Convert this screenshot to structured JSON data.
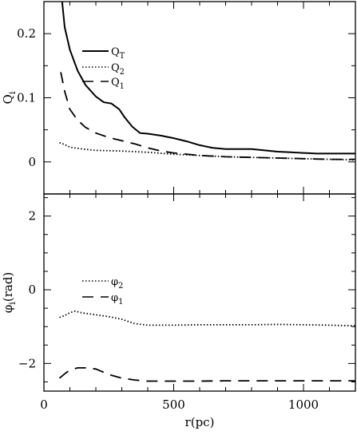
{
  "chart_data": [
    {
      "type": "line",
      "panel": "top",
      "ylabel": "Q_i",
      "xlim": [
        0,
        1200
      ],
      "ylim": [
        -0.05,
        0.25
      ],
      "yticks": [
        0,
        0.1,
        0.2
      ],
      "ytick_labels": [
        "0",
        "0.1",
        "0.2"
      ],
      "xticks": [
        0,
        500,
        1000
      ],
      "legend_position": "upper-center",
      "series": [
        {
          "name": "Q_T",
          "style": "solid",
          "x": [
            70,
            80,
            100,
            130,
            160,
            200,
            230,
            260,
            290,
            310,
            340,
            370,
            400,
            450,
            500,
            550,
            600,
            650,
            700,
            750,
            800,
            850,
            900,
            950,
            1000,
            1050,
            1100,
            1150,
            1200
          ],
          "y": [
            0.25,
            0.21,
            0.175,
            0.142,
            0.12,
            0.102,
            0.093,
            0.091,
            0.082,
            0.07,
            0.055,
            0.045,
            0.044,
            0.041,
            0.037,
            0.032,
            0.026,
            0.022,
            0.02,
            0.02,
            0.02,
            0.018,
            0.016,
            0.015,
            0.014,
            0.013,
            0.013,
            0.013,
            0.013
          ]
        },
        {
          "name": "Q_2",
          "style": "dotted",
          "x": [
            60,
            80,
            100,
            150,
            200,
            300,
            400,
            500,
            600,
            700,
            800,
            900,
            1000,
            1100,
            1200
          ],
          "y": [
            0.03,
            0.027,
            0.023,
            0.02,
            0.018,
            0.017,
            0.015,
            0.012,
            0.01,
            0.008,
            0.007,
            0.006,
            0.005,
            0.004,
            0.003
          ]
        },
        {
          "name": "Q_1",
          "style": "dashed",
          "x": [
            65,
            80,
            100,
            130,
            160,
            200,
            250,
            300,
            350,
            400,
            450,
            500,
            600,
            700,
            800,
            900,
            1000,
            1100,
            1200
          ],
          "y": [
            0.14,
            0.11,
            0.082,
            0.065,
            0.054,
            0.045,
            0.038,
            0.033,
            0.028,
            0.022,
            0.017,
            0.014,
            0.01,
            0.008,
            0.007,
            0.006,
            0.005,
            0.004,
            0.004
          ]
        }
      ]
    },
    {
      "type": "line",
      "panel": "bottom",
      "xlabel": "r(pc)",
      "ylabel": "φ_i(rad)",
      "xlim": [
        0,
        1200
      ],
      "ylim": [
        -2.75,
        2.6
      ],
      "yticks": [
        -2,
        0,
        2
      ],
      "ytick_labels": [
        "−2",
        "0",
        "2"
      ],
      "xticks": [
        0,
        500,
        1000
      ],
      "xtick_labels": [
        "0",
        "500",
        "1000"
      ],
      "legend_position": "center-left",
      "series": [
        {
          "name": "φ_2",
          "style": "dotted",
          "x": [
            60,
            80,
            100,
            120,
            150,
            200,
            250,
            300,
            350,
            400,
            500,
            600,
            700,
            800,
            900,
            1000,
            1100,
            1200
          ],
          "y": [
            -0.75,
            -0.7,
            -0.62,
            -0.58,
            -0.63,
            -0.68,
            -0.73,
            -0.8,
            -0.92,
            -0.96,
            -0.96,
            -0.95,
            -0.95,
            -0.95,
            -0.94,
            -0.95,
            -0.96,
            -0.98
          ]
        },
        {
          "name": "φ_1",
          "style": "dashed",
          "x": [
            60,
            80,
            100,
            130,
            160,
            200,
            250,
            300,
            350,
            400,
            500,
            600,
            700,
            800,
            900,
            1000,
            1100,
            1200
          ],
          "y": [
            -2.4,
            -2.28,
            -2.18,
            -2.12,
            -2.12,
            -2.15,
            -2.3,
            -2.4,
            -2.45,
            -2.48,
            -2.48,
            -2.48,
            -2.47,
            -2.47,
            -2.47,
            -2.47,
            -2.47,
            -2.47
          ]
        }
      ]
    }
  ]
}
